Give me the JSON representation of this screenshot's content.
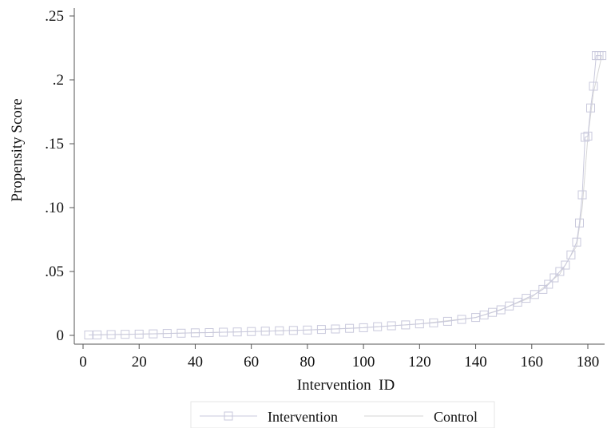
{
  "chart_data": {
    "type": "line",
    "title": "",
    "xlabel": "Intervention  ID",
    "ylabel": "Propensity Score",
    "xlim": [
      0,
      185
    ],
    "ylim": [
      0,
      0.25
    ],
    "x_ticks": [
      0,
      20,
      40,
      60,
      80,
      100,
      120,
      140,
      160,
      180
    ],
    "x_tick_labels": [
      "0",
      "20",
      "40",
      "60",
      "80",
      "100",
      "120",
      "140",
      "160",
      "180"
    ],
    "y_ticks": [
      0,
      0.05,
      0.1,
      0.15,
      0.2,
      0.25
    ],
    "y_tick_labels": [
      "0",
      ".05",
      ".10",
      ".15",
      ".2",
      ".25"
    ],
    "grid": false,
    "legend_position": "bottom",
    "colors": {
      "intervention": "#c9c9dc",
      "control": "#d6d6d6",
      "axis": "#555555"
    },
    "series": [
      {
        "name": "Intervention",
        "marker": "square",
        "x": [
          2,
          5,
          10,
          15,
          20,
          25,
          30,
          35,
          40,
          45,
          50,
          55,
          60,
          65,
          70,
          75,
          80,
          85,
          90,
          95,
          100,
          105,
          110,
          115,
          120,
          125,
          130,
          135,
          140,
          143,
          146,
          149,
          152,
          155,
          158,
          161,
          164,
          166,
          168,
          170,
          172,
          174,
          176,
          177,
          178,
          179,
          180,
          181,
          182,
          183,
          184,
          185
        ],
        "y": [
          0.0003,
          0.0004,
          0.0006,
          0.0008,
          0.001,
          0.0012,
          0.0015,
          0.0017,
          0.002,
          0.0022,
          0.0025,
          0.0027,
          0.003,
          0.0033,
          0.0036,
          0.0039,
          0.0042,
          0.0046,
          0.005,
          0.0055,
          0.006,
          0.0068,
          0.0075,
          0.0082,
          0.009,
          0.0098,
          0.011,
          0.0125,
          0.014,
          0.016,
          0.018,
          0.02,
          0.023,
          0.026,
          0.029,
          0.032,
          0.036,
          0.04,
          0.045,
          0.05,
          0.055,
          0.063,
          0.073,
          0.088,
          0.11,
          0.155,
          0.156,
          0.178,
          0.195,
          0.219,
          0.219,
          0.219
        ]
      },
      {
        "name": "Control",
        "marker": "none",
        "x": [
          2,
          20,
          40,
          60,
          80,
          100,
          120,
          140,
          150,
          160,
          170,
          176,
          178,
          180,
          182,
          185
        ],
        "y": [
          0.0003,
          0.001,
          0.002,
          0.003,
          0.0042,
          0.006,
          0.009,
          0.014,
          0.021,
          0.03,
          0.048,
          0.07,
          0.1,
          0.155,
          0.19,
          0.219
        ]
      }
    ]
  }
}
